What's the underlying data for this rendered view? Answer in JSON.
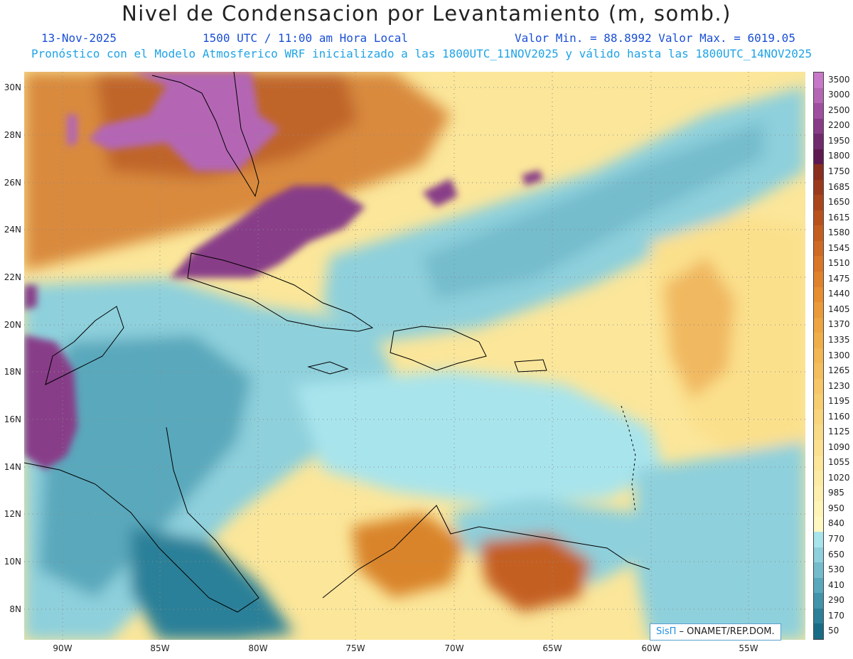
{
  "header": {
    "title": "Nivel de Condensacion por Levantamiento (m, somb.)",
    "date": "13-Nov-2025",
    "time": "1500 UTC / 11:00 am Hora Local",
    "min_max": "Valor Min. = 88.8992  Valor Max. = 6019.05",
    "model_info": "Pronóstico con el Modelo Atmosferico WRF inicializado a las 1800UTC_11NOV2025 y válido hasta las  1800UTC_14NOV2025"
  },
  "map": {
    "lat_labels": [
      "30N",
      "28N",
      "26N",
      "24N",
      "22N",
      "20N",
      "18N",
      "16N",
      "14N",
      "12N",
      "10N",
      "8N"
    ],
    "lon_labels": [
      "90W",
      "85W",
      "80W",
      "75W",
      "70W",
      "65W",
      "60W",
      "55W"
    ],
    "coastline_color": "#000000"
  },
  "colorbar": {
    "levels": [
      {
        "label": "3500",
        "color": "#c878c8"
      },
      {
        "label": "3000",
        "color": "#b466b4"
      },
      {
        "label": "2500",
        "color": "#9e4f9e"
      },
      {
        "label": "2200",
        "color": "#883c88"
      },
      {
        "label": "1950",
        "color": "#722a6e"
      },
      {
        "label": "1800",
        "color": "#5e1a50"
      },
      {
        "label": "1750",
        "color": "#8a2e1e"
      },
      {
        "label": "1685",
        "color": "#9a3a1c"
      },
      {
        "label": "1650",
        "color": "#aa461c"
      },
      {
        "label": "1615",
        "color": "#b8521c"
      },
      {
        "label": "1580",
        "color": "#c45e20"
      },
      {
        "label": "1545",
        "color": "#cf6a24"
      },
      {
        "label": "1510",
        "color": "#d97628"
      },
      {
        "label": "1475",
        "color": "#e0822c"
      },
      {
        "label": "1440",
        "color": "#e68e30"
      },
      {
        "label": "1405",
        "color": "#ea9a38"
      },
      {
        "label": "1370",
        "color": "#eea440"
      },
      {
        "label": "1335",
        "color": "#f0ae4a"
      },
      {
        "label": "1300",
        "color": "#f2b654"
      },
      {
        "label": "1265",
        "color": "#f4be5e"
      },
      {
        "label": "1230",
        "color": "#f6c668"
      },
      {
        "label": "1195",
        "color": "#f7cd72"
      },
      {
        "label": "1160",
        "color": "#f8d47c"
      },
      {
        "label": "1125",
        "color": "#f9da86"
      },
      {
        "label": "1090",
        "color": "#fae090"
      },
      {
        "label": "1055",
        "color": "#fbe69a"
      },
      {
        "label": "1020",
        "color": "#fcebA4"
      },
      {
        "label": "985",
        "color": "#fdf0ae"
      },
      {
        "label": "950",
        "color": "#fef4b8"
      },
      {
        "label": "840",
        "color": "#fff8c2"
      },
      {
        "label": "770",
        "color": "#a8e4ec"
      },
      {
        "label": "650",
        "color": "#8ed0dc"
      },
      {
        "label": "530",
        "color": "#74bccc"
      },
      {
        "label": "410",
        "color": "#5aa8bc"
      },
      {
        "label": "290",
        "color": "#4294aa"
      },
      {
        "label": "170",
        "color": "#2c8098"
      },
      {
        "label": "50",
        "color": "#186c86"
      }
    ]
  },
  "credit": {
    "brand": "SisΠ",
    "text": " – ONAMET/REP.DOM."
  }
}
